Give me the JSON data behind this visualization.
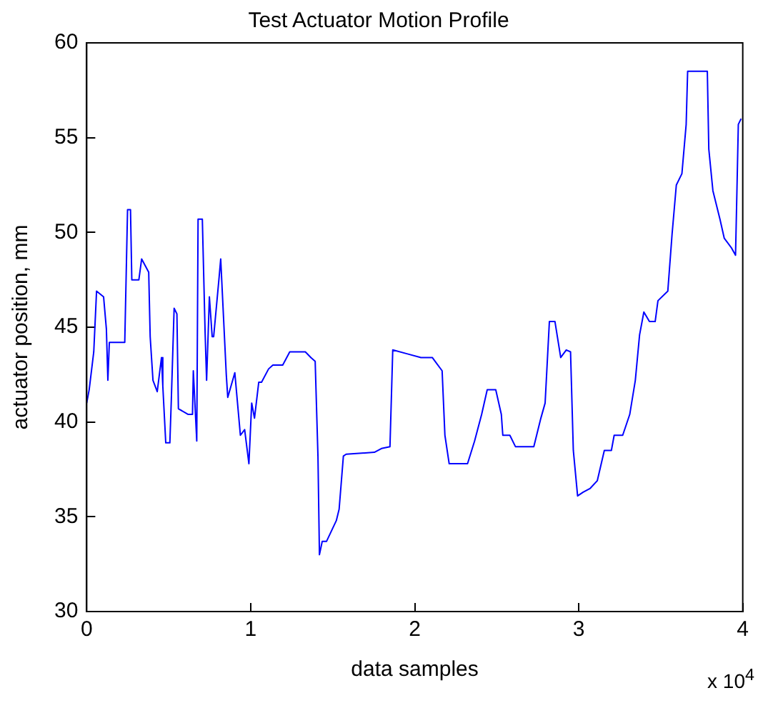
{
  "chart_data": {
    "type": "line",
    "title": "Test Actuator Motion Profile",
    "xlabel": "data samples",
    "ylabel": "actuator position, mm",
    "annotations": [
      "x 10$^{4}$"
    ],
    "xlim": [
      0,
      4
    ],
    "xticks": [
      0,
      1,
      2,
      3,
      4
    ],
    "ylim": [
      30,
      60
    ],
    "yticks": [
      30,
      35,
      40,
      45,
      50,
      55,
      60
    ],
    "grid": false,
    "legend": false,
    "marker": "none",
    "line_style": "solid",
    "series": [
      {
        "color": "#0000ff",
        "x": [
          0,
          0.015,
          0.043,
          0.06,
          0.103,
          0.12,
          0.129,
          0.138,
          0.163,
          0.232,
          0.249,
          0.267,
          0.275,
          0.318,
          0.335,
          0.378,
          0.387,
          0.404,
          0.43,
          0.456,
          0.464,
          0.482,
          0.507,
          0.516,
          0.533,
          0.55,
          0.559,
          0.619,
          0.645,
          0.65,
          0.671,
          0.679,
          0.705,
          0.722,
          0.731,
          0.748,
          0.765,
          0.774,
          0.808,
          0.817,
          0.851,
          0.86,
          0.903,
          0.937,
          0.963,
          0.989,
          1.006,
          1.023,
          1.049,
          1.066,
          1.109,
          1.135,
          1.195,
          1.238,
          1.264,
          1.307,
          1.333,
          1.367,
          1.393,
          1.41,
          1.419,
          1.436,
          1.462,
          1.522,
          1.539,
          1.565,
          1.582,
          1.754,
          1.797,
          1.849,
          1.866,
          1.952,
          2.038,
          2.107,
          2.167,
          2.184,
          2.21,
          2.253,
          2.322,
          2.365,
          2.408,
          2.442,
          2.494,
          2.528,
          2.537,
          2.58,
          2.614,
          2.726,
          2.769,
          2.795,
          2.821,
          2.855,
          2.89,
          2.924,
          2.95,
          2.967,
          2.993,
          3.027,
          3.07,
          3.113,
          3.156,
          3.199,
          3.216,
          3.268,
          3.311,
          3.345,
          3.371,
          3.397,
          3.431,
          3.466,
          3.483,
          3.543,
          3.569,
          3.595,
          3.629,
          3.655,
          3.664,
          3.784,
          3.793,
          3.818,
          3.861,
          3.887,
          3.93,
          3.956,
          3.965,
          3.973,
          3.99
        ],
        "values": [
          41,
          41.7,
          43.7,
          46.9,
          46.6,
          44.9,
          42.2,
          44.2,
          44.2,
          44.2,
          51.2,
          51.2,
          47.5,
          47.5,
          48.6,
          47.9,
          44.5,
          42.2,
          41.6,
          43.4,
          41.9,
          38.9,
          38.9,
          41.2,
          46,
          45.7,
          40.7,
          40.4,
          40.4,
          42.7,
          39,
          50.7,
          50.7,
          44.7,
          42.2,
          46.6,
          44.5,
          44.5,
          47.7,
          48.6,
          42.5,
          41.3,
          42.6,
          39.3,
          39.6,
          37.8,
          41,
          40.2,
          42.1,
          42.1,
          42.8,
          43,
          43,
          43.7,
          43.7,
          43.7,
          43.7,
          43.4,
          43.2,
          38.2,
          33,
          33.7,
          33.7,
          34.8,
          35.4,
          38.2,
          38.3,
          38.4,
          38.6,
          38.7,
          43.8,
          43.6,
          43.4,
          43.4,
          42.7,
          39.3,
          37.8,
          37.8,
          37.8,
          39,
          40.4,
          41.7,
          41.7,
          40.4,
          39.3,
          39.3,
          38.7,
          38.7,
          40.2,
          41,
          45.3,
          45.3,
          43.4,
          43.8,
          43.7,
          38.5,
          36.1,
          36.3,
          36.5,
          36.9,
          38.5,
          38.5,
          39.3,
          39.3,
          40.4,
          42.2,
          44.6,
          45.8,
          45.3,
          45.3,
          46.4,
          46.9,
          49.9,
          52.5,
          53.1,
          55.7,
          58.5,
          58.5,
          54.4,
          52.2,
          50.7,
          49.7,
          49.2,
          48.8,
          52.4,
          55.7,
          56
        ]
      }
    ]
  }
}
